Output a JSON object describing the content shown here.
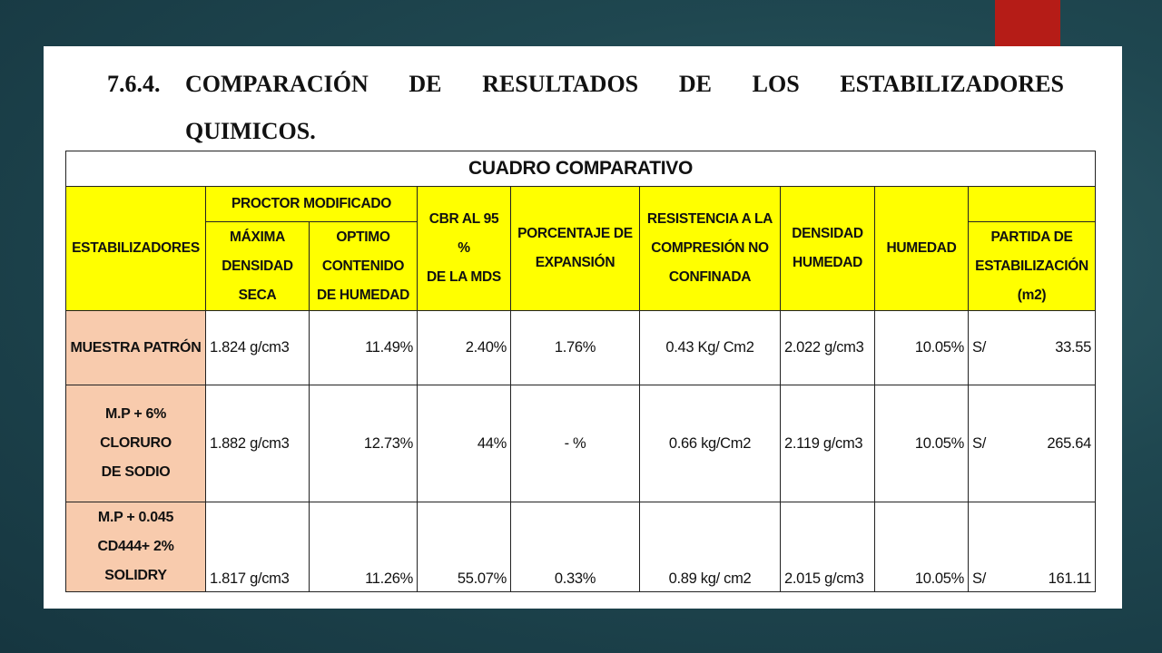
{
  "heading": {
    "number": "7.6.4.",
    "line1_words": [
      "COMPARACIÓN",
      "DE",
      "RESULTADOS",
      "DE",
      "LOS",
      "ESTABILIZADORES"
    ],
    "line2": "QUIMICOS."
  },
  "table": {
    "title": "CUADRO COMPARATIVO",
    "headers": {
      "estabilizadores": "ESTABILIZADORES",
      "proctor": "PROCTOR MODIFICADO",
      "max_densidad": [
        "MÁXIMA",
        "DENSIDAD",
        "SECA"
      ],
      "optimo": [
        "OPTIMO",
        "CONTENIDO",
        "DE HUMEDAD"
      ],
      "cbr": [
        "CBR AL 95 %",
        "DE LA MDS"
      ],
      "expansion": [
        "PORCENTAJE DE",
        "EXPANSIÓN"
      ],
      "resistencia": [
        "RESISTENCIA A LA",
        "COMPRESIÓN NO",
        "CONFINADA"
      ],
      "densidad_humeda": [
        "DENSIDAD",
        "HUMEDAD"
      ],
      "humedad": "HUMEDAD",
      "partida": [
        "PARTIDA DE",
        "ESTABILIZACIÓN",
        "(m2)"
      ]
    },
    "rows": [
      {
        "label": [
          "MUESTRA PATRÓN"
        ],
        "max_densidad": "1.824 g/cm3",
        "optimo": "11.49%",
        "cbr": "2.40%",
        "expansion": "1.76%",
        "resistencia": "0.43 Kg/ Cm2",
        "densidad_humeda": "2.022 g/cm3",
        "humedad": "10.05%",
        "currency": "S/",
        "partida": "33.55"
      },
      {
        "label": [
          "M.P + 6% CLORURO",
          "DE SODIO"
        ],
        "max_densidad": "1.882 g/cm3",
        "optimo": "12.73%",
        "cbr": "44%",
        "expansion": "- %",
        "resistencia": "0.66 kg/Cm2",
        "densidad_humeda": "2.119 g/cm3",
        "humedad": "10.05%",
        "currency": "S/",
        "partida": "265.64"
      },
      {
        "label": [
          "M.P + 0.045",
          "CD444+ 2%",
          "SOLIDRY"
        ],
        "max_densidad": "1.817 g/cm3",
        "optimo": "11.26%",
        "cbr": "55.07%",
        "expansion": "0.33%",
        "resistencia": "0.89 kg/ cm2",
        "densidad_humeda": "2.015 g/cm3",
        "humedad": "10.05%",
        "currency": "S/",
        "partida": "161.11"
      }
    ]
  }
}
